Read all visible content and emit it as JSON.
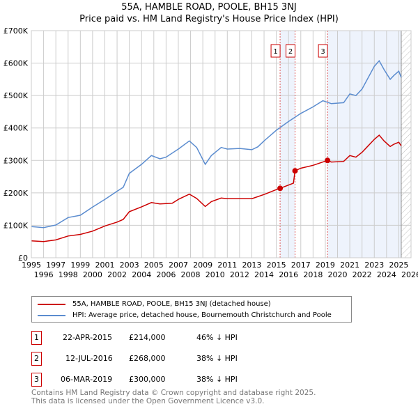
{
  "title": "55A, HAMBLE ROAD, POOLE, BH15 3NJ",
  "subtitle": "Price paid vs. HM Land Registry's House Price Index (HPI)",
  "chart_data": {
    "type": "line",
    "xlim": [
      1995,
      2026
    ],
    "ylim": [
      0,
      700000
    ],
    "yticks": [
      {
        "v": 0,
        "label": "£0"
      },
      {
        "v": 100000,
        "label": "£100K"
      },
      {
        "v": 200000,
        "label": "£200K"
      },
      {
        "v": 300000,
        "label": "£300K"
      },
      {
        "v": 400000,
        "label": "£400K"
      },
      {
        "v": 500000,
        "label": "£500K"
      },
      {
        "v": 600000,
        "label": "£600K"
      },
      {
        "v": 700000,
        "label": "£700K"
      }
    ],
    "xticks": [
      "1995",
      "1996",
      "1997",
      "1998",
      "1999",
      "2000",
      "2001",
      "2002",
      "2003",
      "2004",
      "2005",
      "2006",
      "2007",
      "2008",
      "2009",
      "2010",
      "2011",
      "2012",
      "2013",
      "2014",
      "2015",
      "2016",
      "2017",
      "2018",
      "2019",
      "2020",
      "2021",
      "2022",
      "2023",
      "2024",
      "2025",
      "2026"
    ],
    "series": [
      {
        "name": "55A, HAMBLE ROAD, POOLE, BH15 3NJ (detached house)",
        "color": "#cc0000",
        "points": [
          [
            1995,
            52
          ],
          [
            1996,
            50
          ],
          [
            1997,
            55
          ],
          [
            1998,
            67
          ],
          [
            1999,
            72
          ],
          [
            2000,
            82
          ],
          [
            2001,
            98
          ],
          [
            2002,
            110
          ],
          [
            2002.5,
            118
          ],
          [
            2003,
            142
          ],
          [
            2004,
            157
          ],
          [
            2004.8,
            170
          ],
          [
            2005.5,
            166
          ],
          [
            2006.5,
            168
          ],
          [
            2007,
            180
          ],
          [
            2007.9,
            196
          ],
          [
            2008.5,
            183
          ],
          [
            2009.2,
            158
          ],
          [
            2009.7,
            173
          ],
          [
            2010.5,
            184
          ],
          [
            2011,
            182
          ],
          [
            2012,
            182
          ],
          [
            2013,
            182
          ],
          [
            2014,
            195
          ],
          [
            2015,
            210
          ],
          [
            2015.31,
            214
          ],
          [
            2016.4,
            230
          ],
          [
            2016.53,
            268
          ],
          [
            2017,
            276
          ],
          [
            2018,
            285
          ],
          [
            2019.18,
            300
          ],
          [
            2019.5,
            295
          ],
          [
            2020.5,
            297
          ],
          [
            2021,
            315
          ],
          [
            2021.5,
            310
          ],
          [
            2022,
            325
          ],
          [
            2022.5,
            345
          ],
          [
            2023,
            365
          ],
          [
            2023.4,
            378
          ],
          [
            2023.8,
            360
          ],
          [
            2024.3,
            343
          ],
          [
            2024.6,
            350
          ],
          [
            2025.0,
            356
          ],
          [
            2025.2,
            345
          ]
        ]
      },
      {
        "name": "HPI: Average price, detached house, Bournemouth Christchurch and Poole",
        "color": "#5b8ccf",
        "points": [
          [
            1995,
            96
          ],
          [
            1996,
            93
          ],
          [
            1997,
            101
          ],
          [
            1998,
            124
          ],
          [
            1999,
            131
          ],
          [
            2000,
            156
          ],
          [
            2001,
            180
          ],
          [
            2002,
            205
          ],
          [
            2002.5,
            217
          ],
          [
            2003,
            260
          ],
          [
            2004,
            288
          ],
          [
            2004.8,
            315
          ],
          [
            2005.5,
            305
          ],
          [
            2006,
            310
          ],
          [
            2007,
            335
          ],
          [
            2007.9,
            360
          ],
          [
            2008.5,
            340
          ],
          [
            2009.2,
            288
          ],
          [
            2009.7,
            315
          ],
          [
            2010.5,
            340
          ],
          [
            2011,
            335
          ],
          [
            2012,
            337
          ],
          [
            2013,
            333
          ],
          [
            2013.5,
            342
          ],
          [
            2014,
            360
          ],
          [
            2015,
            393
          ],
          [
            2016,
            420
          ],
          [
            2017,
            445
          ],
          [
            2018,
            465
          ],
          [
            2018.8,
            484
          ],
          [
            2019.5,
            475
          ],
          [
            2020.5,
            478
          ],
          [
            2021,
            505
          ],
          [
            2021.5,
            500
          ],
          [
            2022,
            520
          ],
          [
            2022.5,
            555
          ],
          [
            2023,
            590
          ],
          [
            2023.4,
            607
          ],
          [
            2023.8,
            580
          ],
          [
            2024.3,
            550
          ],
          [
            2024.6,
            562
          ],
          [
            2025.0,
            575
          ],
          [
            2025.2,
            556
          ]
        ]
      }
    ],
    "value_units": "thousands GBP",
    "sales": [
      {
        "n": "1",
        "x": 2015.31,
        "y": 214
      },
      {
        "n": "2",
        "x": 2016.53,
        "y": 268
      },
      {
        "n": "3",
        "x": 2019.18,
        "y": 300
      }
    ],
    "projection_start": 2025.2
  },
  "legend": [
    {
      "label": "55A, HAMBLE ROAD, POOLE, BH15 3NJ (detached house)",
      "color": "#cc0000"
    },
    {
      "label": "HPI: Average price, detached house, Bournemouth Christchurch and Poole",
      "color": "#5b8ccf"
    }
  ],
  "transactions": [
    {
      "n": "1",
      "date": "22-APR-2015",
      "price": "£214,000",
      "delta": "46% ↓ HPI"
    },
    {
      "n": "2",
      "date": "12-JUL-2016",
      "price": "£268,000",
      "delta": "38% ↓ HPI"
    },
    {
      "n": "3",
      "date": "06-MAR-2019",
      "price": "£300,000",
      "delta": "38% ↓ HPI"
    }
  ],
  "footer": [
    "Contains HM Land Registry data © Crown copyright and database right 2025.",
    "This data is licensed under the Open Government Licence v3.0."
  ]
}
